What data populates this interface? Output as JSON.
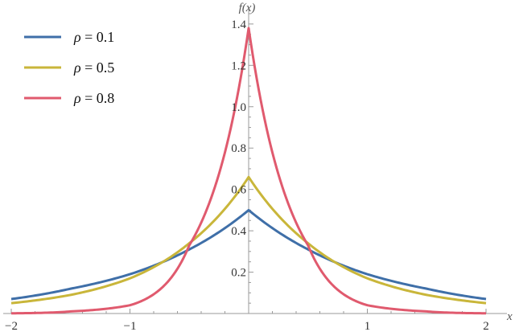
{
  "chart_data": {
    "type": "line",
    "xlabel": "x",
    "ylabel": "f(x)",
    "xlim": [
      -2,
      2
    ],
    "ylim": [
      0,
      1.45
    ],
    "x_ticks": [
      -2,
      -1,
      1,
      2
    ],
    "x_tick_labels": [
      "−2",
      "−1",
      "1",
      "2"
    ],
    "y_ticks": [
      0.2,
      0.4,
      0.6,
      0.8,
      1.0,
      1.2,
      1.4
    ],
    "y_tick_labels": [
      "0.2",
      "0.4",
      "0.6",
      "0.8",
      "1.0",
      "1.2",
      "1.4"
    ],
    "legend_position": "top-left",
    "grid": false,
    "series": [
      {
        "name": "ρ = 0.1",
        "rho_symbol": "ρ",
        "rho_value": "= 0.1",
        "color": "#3f6fa8",
        "x": [
          -2,
          -1.5,
          -1,
          -0.5,
          0,
          0.5,
          1,
          1.5,
          2
        ],
        "y": [
          0.07,
          0.12,
          0.19,
          0.31,
          0.5,
          0.31,
          0.19,
          0.12,
          0.07
        ]
      },
      {
        "name": "ρ = 0.5",
        "rho_symbol": "ρ",
        "rho_value": "= 0.5",
        "color": "#c9b63a",
        "x": [
          -2,
          -1.5,
          -1,
          -0.5,
          0,
          0.5,
          1,
          1.5,
          2
        ],
        "y": [
          0.05,
          0.09,
          0.17,
          0.34,
          0.66,
          0.34,
          0.17,
          0.09,
          0.05
        ]
      },
      {
        "name": "ρ = 0.8",
        "rho_symbol": "ρ",
        "rho_value": "= 0.8",
        "color": "#e05a6e",
        "x": [
          -2,
          -1.5,
          -1,
          -0.5,
          0,
          0.5,
          1,
          1.5,
          2
        ],
        "y": [
          0.001,
          0.01,
          0.04,
          0.33,
          1.38,
          0.33,
          0.04,
          0.01,
          0.001
        ]
      }
    ]
  }
}
